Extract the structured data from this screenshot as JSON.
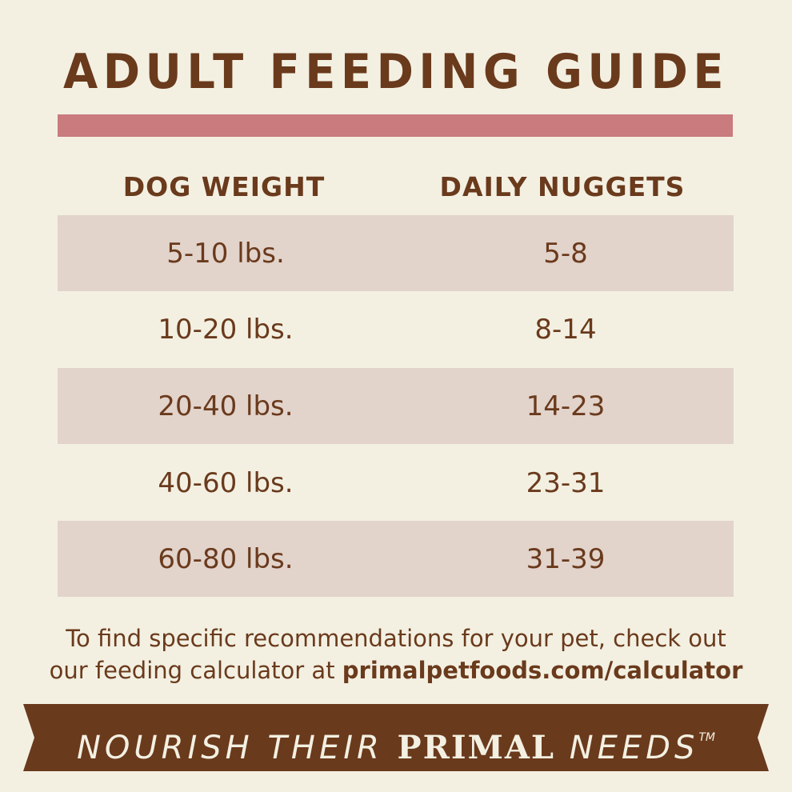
{
  "title": "ADULT FEEDING GUIDE",
  "colors": {
    "background": "#f3f0e2",
    "brown": "#6a3a1c",
    "accent_bar": "#c97b7d",
    "row_shade": "#e2d3cb"
  },
  "table": {
    "headers": [
      "DOG WEIGHT",
      "DAILY NUGGETS"
    ],
    "rows": [
      {
        "weight": "5-10 lbs.",
        "nuggets": "5-8"
      },
      {
        "weight": "10-20 lbs.",
        "nuggets": "8-14"
      },
      {
        "weight": "20-40 lbs.",
        "nuggets": "14-23"
      },
      {
        "weight": "40-60 lbs.",
        "nuggets": "23-31"
      },
      {
        "weight": "60-80 lbs.",
        "nuggets": "31-39"
      }
    ]
  },
  "footer": {
    "line1": "To find specific recommendations for your pet, check out",
    "line2_prefix": "our feeding calculator at ",
    "url": "primalpetfoods.com/calculator"
  },
  "banner": {
    "part1": "NOURISH THEIR ",
    "primal": "PRIMAL",
    "part2": " NEEDS",
    "tm": "TM"
  }
}
